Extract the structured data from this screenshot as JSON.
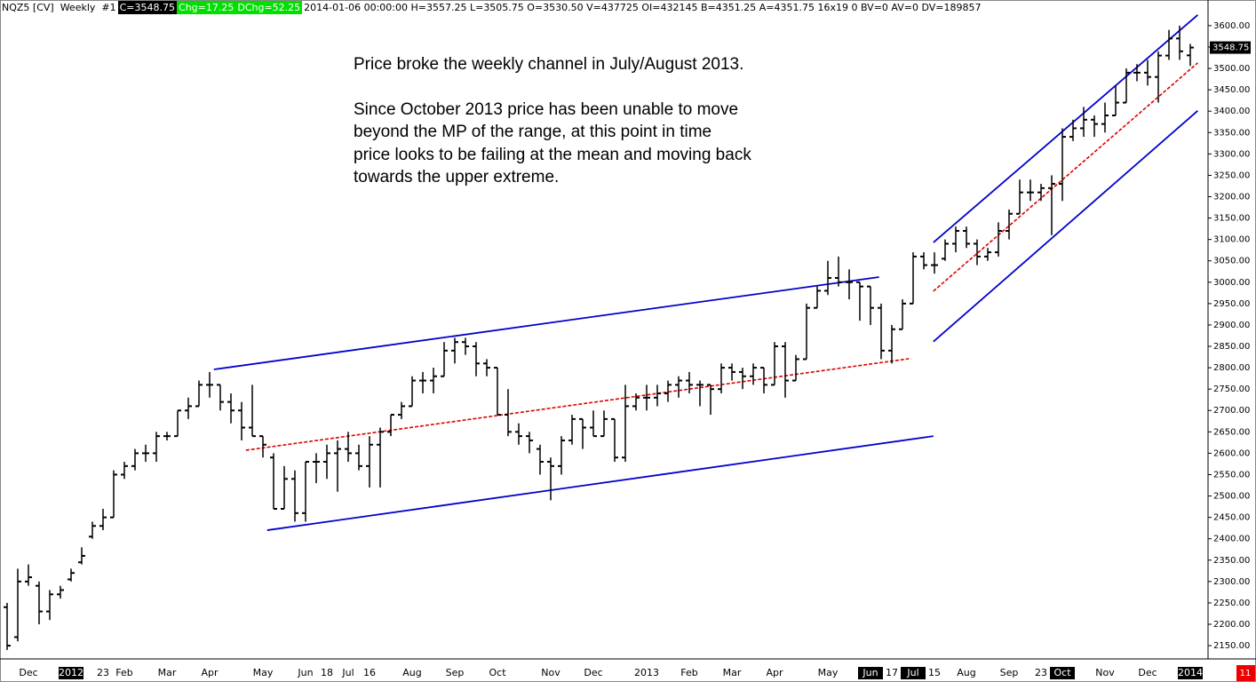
{
  "chart_data": {
    "type": "ohlc",
    "header": {
      "symbol": "NQZ5 [CV]  Weekly  #1",
      "close": "C=3548.75",
      "chg": "Chg=17.25",
      "dchg": "DChg=52.25",
      "info": "2014-01-06 00:00:00 H=3557.25 L=3505.75 O=3530.50 V=437725 OI=432145 B=4351.25 A=4351.75 16x19 0 BV=0 AV=0 DV=189857"
    },
    "annotation": [
      [
        "Price broke the weekly channel in July/August 2013."
      ],
      [
        "Since October 2013 price has been unable to move",
        "beyond the MP of the range, at this point in time",
        "price looks to be failing at the mean and moving back",
        "towards the upper extreme."
      ]
    ],
    "categories": [
      null,
      null,
      "Dec",
      null,
      null,
      null,
      "2012",
      null,
      null,
      "23",
      null,
      "Feb",
      null,
      null,
      null,
      "Mar",
      null,
      null,
      null,
      "Apr",
      null,
      null,
      null,
      null,
      "May",
      null,
      null,
      null,
      "Jun",
      null,
      "18",
      null,
      "Jul",
      null,
      "16",
      null,
      null,
      null,
      "Aug",
      null,
      null,
      null,
      "Sep",
      null,
      null,
      null,
      "Oct",
      null,
      null,
      null,
      null,
      "Nov",
      null,
      null,
      null,
      "Dec",
      null,
      null,
      null,
      null,
      "2013",
      null,
      null,
      null,
      "Feb",
      null,
      null,
      null,
      "Mar",
      null,
      null,
      null,
      "Apr",
      null,
      null,
      null,
      null,
      "May",
      null,
      null,
      null,
      "Jun",
      null,
      "17",
      null,
      "Jul",
      null,
      "15",
      null,
      null,
      "Aug",
      null,
      null,
      null,
      "Sep",
      null,
      null,
      "23",
      null,
      "Oct",
      null,
      null,
      null,
      "Nov",
      null,
      null,
      null,
      "Dec",
      null,
      null,
      null,
      "2014"
    ],
    "highlight": [
      6,
      81,
      85,
      99,
      111
    ],
    "open": [
      2240,
      2170,
      2300,
      2290,
      2230,
      2270,
      2305,
      2345,
      2405,
      2430,
      2450,
      2550,
      2570,
      2600,
      2600,
      2640,
      2640,
      2700,
      2710,
      2760,
      2760,
      2720,
      2700,
      2660,
      2640,
      2590,
      2470,
      2540,
      2460,
      2580,
      2580,
      2600,
      2610,
      2600,
      2570,
      2620,
      2650,
      2690,
      2710,
      2770,
      2770,
      2780,
      2840,
      2860,
      2850,
      2810,
      2800,
      2690,
      2650,
      2640,
      2610,
      2580,
      2570,
      2630,
      2680,
      2660,
      2640,
      2680,
      2590,
      2710,
      2730,
      2730,
      2740,
      2760,
      2770,
      2760,
      2760,
      2750,
      2800,
      2790,
      2780,
      2800,
      2760,
      2850,
      2770,
      2820,
      2940,
      2980,
      3010,
      3000,
      3000,
      2990,
      2940,
      2840,
      2890,
      2950,
      3060,
      3040,
      3055,
      3090,
      3120,
      3090,
      3060,
      3070,
      3120,
      3160,
      3210,
      3210,
      3220,
      3230,
      3340,
      3360,
      3380,
      3370,
      3390,
      3420,
      3490,
      3490,
      3480,
      3530,
      3570,
      3530.5
    ],
    "high": [
      2250,
      2330,
      2340,
      2300,
      2280,
      2290,
      2330,
      2380,
      2440,
      2470,
      2560,
      2580,
      2610,
      2620,
      2650,
      2650,
      2700,
      2730,
      2770,
      2790,
      2760,
      2740,
      2720,
      2760,
      2640,
      2600,
      2570,
      2560,
      2580,
      2600,
      2620,
      2630,
      2650,
      2620,
      2640,
      2660,
      2690,
      2720,
      2780,
      2790,
      2800,
      2860,
      2870,
      2870,
      2860,
      2820,
      2800,
      2750,
      2670,
      2650,
      2620,
      2590,
      2640,
      2690,
      2680,
      2700,
      2700,
      2680,
      2760,
      2740,
      2760,
      2760,
      2770,
      2780,
      2790,
      2770,
      2760,
      2810,
      2810,
      2800,
      2810,
      2800,
      2860,
      2860,
      2830,
      2950,
      2990,
      3050,
      3060,
      3030,
      3000,
      2990,
      2950,
      2900,
      2960,
      3070,
      3070,
      3070,
      3100,
      3130,
      3130,
      3100,
      3080,
      3140,
      3170,
      3240,
      3240,
      3230,
      3250,
      3360,
      3380,
      3410,
      3390,
      3420,
      3460,
      3500,
      3510,
      3520,
      3540,
      3590,
      3600,
      3557.25
    ],
    "low": [
      2140,
      2160,
      2290,
      2200,
      2210,
      2260,
      2300,
      2340,
      2400,
      2420,
      2450,
      2540,
      2560,
      2580,
      2580,
      2630,
      2640,
      2680,
      2710,
      2730,
      2700,
      2670,
      2630,
      2640,
      2590,
      2470,
      2470,
      2440,
      2440,
      2530,
      2540,
      2510,
      2580,
      2560,
      2520,
      2520,
      2640,
      2680,
      2710,
      2740,
      2740,
      2780,
      2810,
      2830,
      2780,
      2780,
      2690,
      2640,
      2620,
      2600,
      2550,
      2490,
      2550,
      2620,
      2610,
      2640,
      2640,
      2580,
      2580,
      2700,
      2700,
      2710,
      2720,
      2730,
      2740,
      2710,
      2690,
      2740,
      2770,
      2750,
      2760,
      2740,
      2760,
      2730,
      2770,
      2820,
      2940,
      2970,
      2990,
      2960,
      2910,
      2900,
      2820,
      2810,
      2890,
      2950,
      3030,
      3020,
      3050,
      3070,
      3080,
      3040,
      3050,
      3060,
      3100,
      3160,
      3190,
      3190,
      3110,
      3190,
      3330,
      3340,
      3340,
      3350,
      3390,
      3420,
      3470,
      3460,
      3420,
      3520,
      3520,
      3505.75
    ],
    "close": [
      2150,
      2300,
      2310,
      2230,
      2270,
      2280,
      2320,
      2360,
      2430,
      2450,
      2550,
      2570,
      2600,
      2600,
      2640,
      2640,
      2700,
      2710,
      2760,
      2760,
      2720,
      2700,
      2660,
      2640,
      2620,
      2470,
      2540,
      2460,
      2580,
      2580,
      2600,
      2610,
      2600,
      2570,
      2620,
      2650,
      2690,
      2710,
      2770,
      2770,
      2780,
      2840,
      2860,
      2850,
      2810,
      2800,
      2690,
      2650,
      2640,
      2630,
      2580,
      2570,
      2630,
      2680,
      2660,
      2640,
      2680,
      2590,
      2710,
      2730,
      2730,
      2740,
      2760,
      2770,
      2760,
      2760,
      2750,
      2800,
      2790,
      2780,
      2800,
      2760,
      2850,
      2770,
      2820,
      2940,
      2980,
      3010,
      3000,
      3000,
      2990,
      2940,
      2840,
      2890,
      2950,
      3060,
      3040,
      3040,
      3090,
      3120,
      3090,
      3060,
      3070,
      3120,
      3160,
      3210,
      3210,
      3220,
      3230,
      3340,
      3360,
      3380,
      3370,
      3390,
      3420,
      3490,
      3490,
      3480,
      3530,
      3570,
      3540,
      3548.75
    ],
    "color": "#000000",
    "ylim": [
      2119,
      3660
    ],
    "yticks": [
      {
        "value": 2150,
        "label": "2150.00"
      },
      {
        "value": 2200,
        "label": "2200.00"
      },
      {
        "value": 2250,
        "label": "2250.00"
      },
      {
        "value": 2300,
        "label": "2300.00"
      },
      {
        "value": 2350,
        "label": "2350.00"
      },
      {
        "value": 2400,
        "label": "2400.00"
      },
      {
        "value": 2450,
        "label": "2450.00"
      },
      {
        "value": 2500,
        "label": "2500.00"
      },
      {
        "value": 2550,
        "label": "2550.00"
      },
      {
        "value": 2600,
        "label": "2600.00"
      },
      {
        "value": 2650,
        "label": "2650.00"
      },
      {
        "value": 2700,
        "label": "2700.00"
      },
      {
        "value": 2750,
        "label": "2750.00"
      },
      {
        "value": 2800,
        "label": "2800.00"
      },
      {
        "value": 2850,
        "label": "2850.00"
      },
      {
        "value": 2900,
        "label": "2900.00"
      },
      {
        "value": 2950,
        "label": "2950.00"
      },
      {
        "value": 3000,
        "label": "3000.00"
      },
      {
        "value": 3050,
        "label": "3050.00"
      },
      {
        "value": 3100,
        "label": "3100.00"
      },
      {
        "value": 3150,
        "label": "3150.00"
      },
      {
        "value": 3200,
        "label": "3200.00"
      },
      {
        "value": 3250,
        "label": "3250.00"
      },
      {
        "value": 3300,
        "label": "3300.00"
      },
      {
        "value": 3350,
        "label": "3350.00"
      },
      {
        "value": 3400,
        "label": "3400.00"
      },
      {
        "value": 3450,
        "label": "3450.00"
      },
      {
        "value": 3500,
        "label": "3500.00"
      },
      {
        "value": 3550,
        "label": "3550.00"
      },
      {
        "value": 3600,
        "label": "3600.00"
      }
    ],
    "last_label": {
      "value": 3548.75,
      "label": "3548.75"
    },
    "trend_lines": [
      {
        "color": "#0000cc",
        "dashed": false,
        "x": [
          19.4,
          81.8
        ],
        "y": [
          2796,
          3012
        ]
      },
      {
        "color": "#0000cc",
        "dashed": false,
        "x": [
          24.4,
          86.9
        ],
        "y": [
          2420,
          2640
        ]
      },
      {
        "color": "#dd0000",
        "dashed": true,
        "x": [
          22.4,
          84.6
        ],
        "y": [
          2607,
          2821
        ]
      },
      {
        "color": "#0000cc",
        "dashed": false,
        "x": [
          86.9,
          111.7
        ],
        "y": [
          3093,
          3625
        ]
      },
      {
        "color": "#0000cc",
        "dashed": false,
        "x": [
          86.9,
          111.7
        ],
        "y": [
          2861,
          3401
        ]
      },
      {
        "color": "#dd0000",
        "dashed": true,
        "x": [
          86.9,
          111.7
        ],
        "y": [
          2979,
          3513
        ]
      }
    ],
    "corner_badge": "11"
  }
}
